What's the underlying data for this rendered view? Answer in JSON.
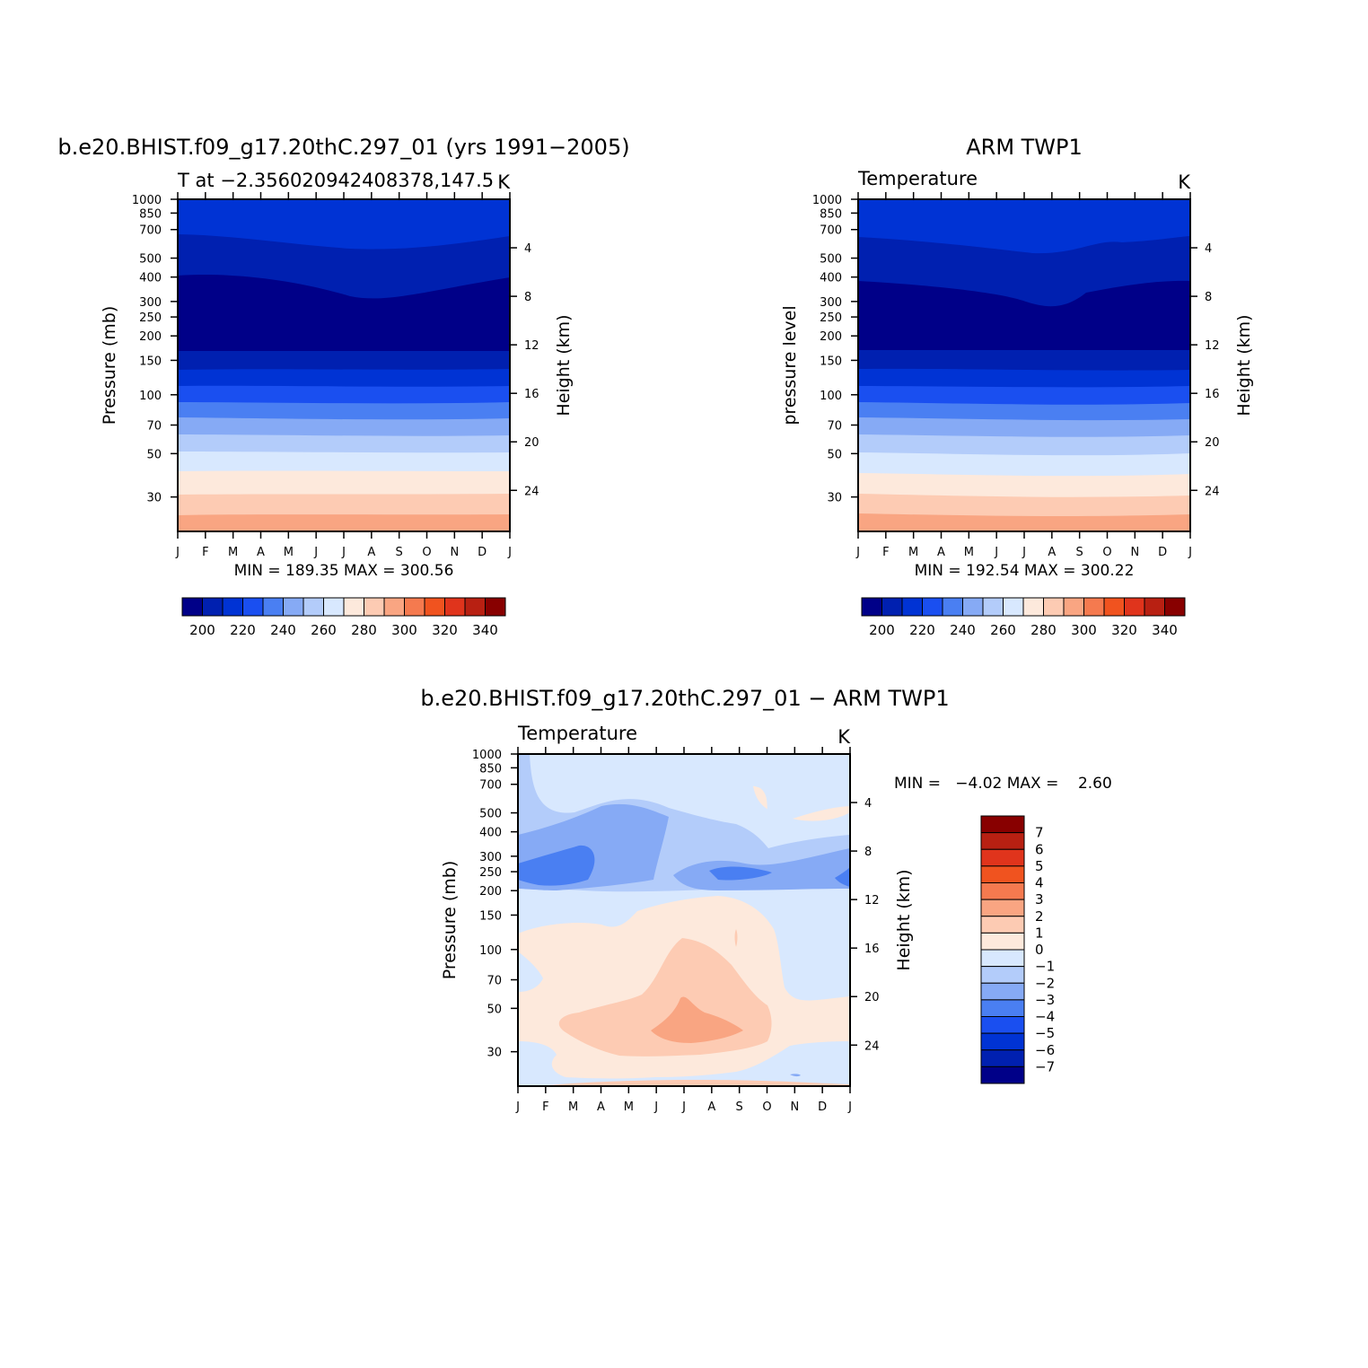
{
  "palette": {
    "temp_levels": [
      "#000088",
      "#0020b0",
      "#0033d4",
      "#1a4ff0",
      "#4a7ff2",
      "#86aaf5",
      "#b3ccfa",
      "#d8e8fe",
      "#fde9dc",
      "#fdcbb3",
      "#f9a582",
      "#f57a4f",
      "#f0531f",
      "#e0341c",
      "#b82012",
      "#880000"
    ],
    "diff_levels": [
      "#000088",
      "#0020b0",
      "#0033d4",
      "#1a4ff0",
      "#4a7ff2",
      "#86aaf5",
      "#b3ccfa",
      "#d8e8fe",
      "#fde9dc",
      "#fdcbb3",
      "#f9a582",
      "#f57a4f",
      "#f0531f",
      "#e0341c",
      "#b82012",
      "#880000"
    ]
  },
  "months": [
    "J",
    "F",
    "M",
    "A",
    "M",
    "J",
    "J",
    "A",
    "S",
    "O",
    "N",
    "D",
    "J"
  ],
  "pressure_ticks": [
    "30",
    "50",
    "70",
    "100",
    "150",
    "200",
    "250",
    "300",
    "400",
    "500",
    "700",
    "850",
    "1000"
  ],
  "height_ticks": [
    "24",
    "20",
    "16",
    "12",
    "8",
    "4"
  ],
  "panels": {
    "model": {
      "title": "b.e20.BHIST.f09_g17.20thC.297_01 (yrs 1991−2005)",
      "subtitle": "T at −2.356020942408378,147.5",
      "units": "K",
      "ylabel": "Pressure (mb)",
      "ylabel2": "Height (km)",
      "stats": "MIN = 189.35 MAX = 300.56",
      "colorbar_ticks": [
        "200",
        "220",
        "240",
        "260",
        "280",
        "300",
        "320",
        "340"
      ]
    },
    "obs": {
      "title": "ARM TWP1",
      "subtitle": "Temperature",
      "units": "K",
      "ylabel": "pressure level",
      "ylabel2": "Height (km)",
      "stats": "MIN = 192.54 MAX = 300.22",
      "colorbar_ticks": [
        "200",
        "220",
        "240",
        "260",
        "280",
        "300",
        "320",
        "340"
      ]
    },
    "diff": {
      "title": "b.e20.BHIST.f09_g17.20thC.297_01 − ARM TWP1",
      "subtitle": "Temperature",
      "units": "K",
      "ylabel": "Pressure (mb)",
      "ylabel2": "Height (km)",
      "stats": "MIN =   −4.02 MAX =    2.60",
      "colorbar_ticks": [
        "7",
        "6",
        "5",
        "4",
        "3",
        "2",
        "1",
        "0",
        "−1",
        "−2",
        "−3",
        "−4",
        "−5",
        "−6",
        "−7"
      ]
    }
  },
  "chart_data": [
    {
      "type": "heatmap",
      "title": "b.e20.BHIST.f09_g17.20thC.297_01 (yrs 1991−2005)",
      "subtitle": "T at −2.356020942408378,147.5",
      "units": "K",
      "xlabel": "",
      "ylabel": "Pressure (mb)",
      "ylabel2": "Height (km)",
      "x_categories": [
        "J",
        "F",
        "M",
        "A",
        "M",
        "J",
        "J",
        "A",
        "S",
        "O",
        "N",
        "D",
        "J"
      ],
      "y_log_pressure_range": [
        1000,
        20
      ],
      "min": 189.35,
      "max": 300.56,
      "colorbar": [
        200,
        210,
        220,
        230,
        240,
        250,
        260,
        270,
        280,
        290,
        300,
        310,
        320,
        330,
        340
      ]
    },
    {
      "type": "heatmap",
      "title": "ARM TWP1",
      "subtitle": "Temperature",
      "units": "K",
      "xlabel": "",
      "ylabel": "pressure level",
      "ylabel2": "Height (km)",
      "x_categories": [
        "J",
        "F",
        "M",
        "A",
        "M",
        "J",
        "J",
        "A",
        "S",
        "O",
        "N",
        "D",
        "J"
      ],
      "y_log_pressure_range": [
        1000,
        20
      ],
      "min": 192.54,
      "max": 300.22,
      "colorbar": [
        200,
        210,
        220,
        230,
        240,
        250,
        260,
        270,
        280,
        290,
        300,
        310,
        320,
        330,
        340
      ]
    },
    {
      "type": "heatmap",
      "title": "b.e20.BHIST.f09_g17.20thC.297_01 − ARM TWP1",
      "subtitle": "Temperature",
      "units": "K",
      "xlabel": "",
      "ylabel": "Pressure (mb)",
      "ylabel2": "Height (km)",
      "x_categories": [
        "J",
        "F",
        "M",
        "A",
        "M",
        "J",
        "J",
        "A",
        "S",
        "O",
        "N",
        "D",
        "J"
      ],
      "y_log_pressure_range": [
        1000,
        20
      ],
      "min": -4.02,
      "max": 2.6,
      "colorbar": [
        -7,
        -6,
        -5,
        -4,
        -3,
        -2,
        -1,
        0,
        1,
        2,
        3,
        4,
        5,
        6,
        7
      ]
    }
  ]
}
